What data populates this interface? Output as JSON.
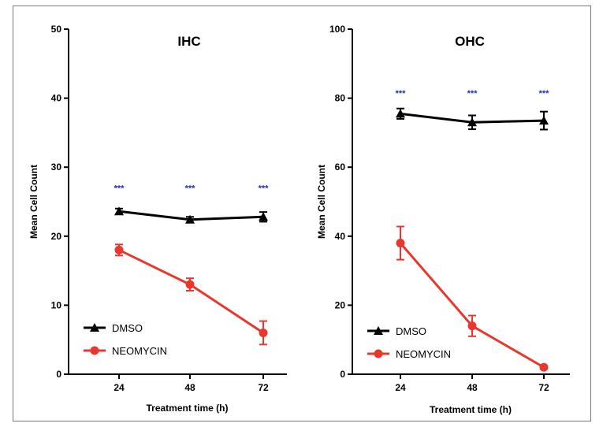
{
  "chart_data": [
    {
      "type": "line",
      "title": "IHC",
      "xlabel": "Treatment time (h)",
      "ylabel": "Mean Cell Count",
      "x": [
        24,
        48,
        72
      ],
      "x_tick_labels": [
        "24",
        "48",
        "72"
      ],
      "ylim": [
        0,
        50
      ],
      "y_ticks": [
        0,
        10,
        20,
        30,
        40,
        50
      ],
      "y_tick_labels": [
        "0",
        "10",
        "20",
        "30",
        "40",
        "50"
      ],
      "legend_position": "bottom-left",
      "series": [
        {
          "name": "DMSO",
          "color": "#000000",
          "marker": "triangle",
          "values": [
            23.6,
            22.4,
            22.8
          ],
          "errors": [
            0.4,
            0.4,
            0.7
          ]
        },
        {
          "name": "NEOMYCIN",
          "color": "#e8372c",
          "marker": "circle",
          "values": [
            18.0,
            13.0,
            6.0
          ],
          "errors": [
            0.8,
            0.9,
            1.7
          ]
        }
      ],
      "annotations": [
        {
          "x": 24,
          "y": 27,
          "text": "***",
          "color": "#1f2db8"
        },
        {
          "x": 48,
          "y": 27,
          "text": "***",
          "color": "#1f2db8"
        },
        {
          "x": 72,
          "y": 27,
          "text": "***",
          "color": "#1f2db8"
        }
      ]
    },
    {
      "type": "line",
      "title": "OHC",
      "xlabel": "Treatment time (h)",
      "ylabel": "Mean Cell Count",
      "x": [
        24,
        48,
        72
      ],
      "x_tick_labels": [
        "24",
        "48",
        "72"
      ],
      "ylim": [
        0,
        100
      ],
      "y_ticks": [
        0,
        20,
        40,
        60,
        80,
        100
      ],
      "y_tick_labels": [
        "0",
        "20",
        "40",
        "60",
        "80",
        "100"
      ],
      "legend_position": "bottom-left",
      "series": [
        {
          "name": "DMSO",
          "color": "#000000",
          "marker": "triangle",
          "values": [
            75.5,
            73.0,
            73.5
          ],
          "errors": [
            1.5,
            2.0,
            2.6
          ]
        },
        {
          "name": "NEOMYCIN",
          "color": "#e8372c",
          "marker": "circle",
          "values": [
            38.0,
            14.0,
            2.0
          ],
          "errors": [
            4.8,
            3.0,
            0.5
          ]
        }
      ],
      "annotations": [
        {
          "x": 24,
          "y": 81.5,
          "text": "***",
          "color": "#1f2db8"
        },
        {
          "x": 48,
          "y": 81.5,
          "text": "***",
          "color": "#1f2db8"
        },
        {
          "x": 72,
          "y": 81.5,
          "text": "***",
          "color": "#1f2db8"
        }
      ]
    }
  ]
}
